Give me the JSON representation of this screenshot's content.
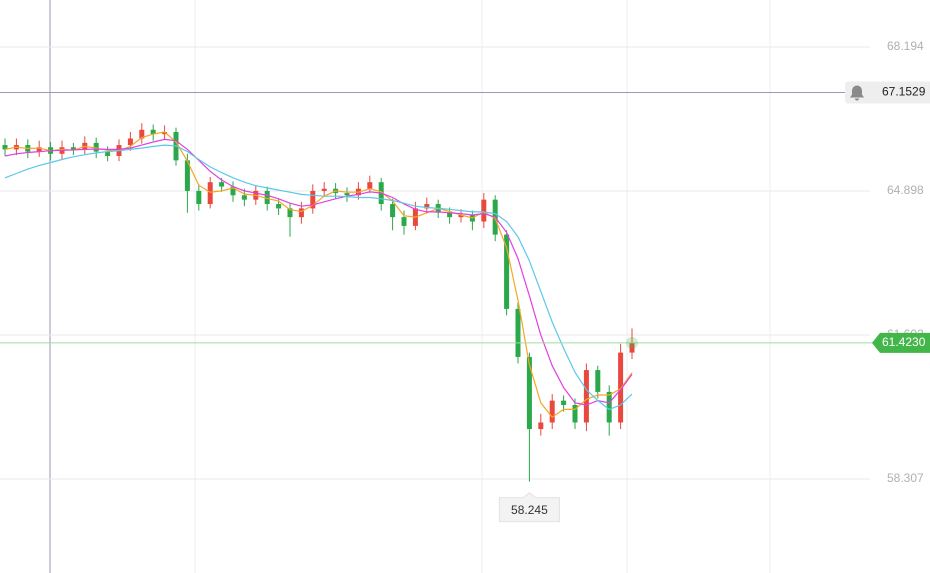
{
  "chart_data": {
    "type": "candlestick",
    "ylim": [
      56.155,
      69.27
    ],
    "yticks": [
      68.194,
      64.898,
      61.602,
      58.307
    ],
    "grid": true,
    "up_color": "#e8483d",
    "down_color": "#2aa84a",
    "open": [
      65.95,
      65.85,
      65.95,
      65.8,
      65.9,
      65.75,
      65.9,
      65.85,
      66.0,
      65.8,
      65.7,
      65.95,
      66.1,
      66.3,
      66.2,
      66.25,
      65.6,
      64.9,
      64.6,
      65.1,
      65.0,
      64.8,
      64.7,
      64.9,
      64.6,
      64.5,
      64.3,
      64.5,
      64.9,
      64.95,
      64.85,
      64.8,
      64.95,
      65.1,
      64.6,
      64.3,
      64.1,
      64.5,
      64.6,
      64.4,
      64.3,
      64.35,
      64.2,
      64.7,
      63.9,
      62.2,
      61.1,
      59.45,
      59.6,
      60.1,
      60.0,
      59.6,
      60.8,
      60.3,
      59.6,
      61.2
    ],
    "high": [
      66.1,
      66.1,
      66.08,
      66.05,
      66.02,
      66.05,
      66.0,
      66.15,
      66.12,
      65.92,
      66.08,
      66.25,
      66.45,
      66.42,
      66.4,
      66.35,
      65.75,
      65.05,
      65.22,
      65.2,
      65.12,
      64.95,
      65.02,
      65.0,
      64.72,
      64.62,
      64.65,
      65.05,
      65.1,
      65.08,
      64.98,
      65.1,
      65.25,
      65.2,
      64.72,
      64.45,
      64.65,
      64.75,
      64.7,
      64.52,
      64.48,
      64.45,
      64.85,
      64.8,
      64.0,
      62.35,
      61.2,
      59.8,
      60.25,
      60.22,
      60.15,
      60.95,
      60.9,
      60.45,
      61.4,
      61.75
    ],
    "low": [
      65.7,
      65.72,
      65.65,
      65.68,
      65.6,
      65.62,
      65.72,
      65.74,
      65.65,
      65.58,
      65.58,
      65.82,
      65.98,
      66.05,
      66.08,
      65.48,
      64.4,
      64.45,
      64.5,
      64.88,
      64.65,
      64.55,
      64.58,
      64.45,
      64.35,
      63.85,
      64.15,
      64.38,
      64.78,
      64.72,
      64.65,
      64.7,
      64.85,
      64.45,
      64.0,
      63.9,
      64.0,
      64.38,
      64.28,
      64.15,
      64.18,
      64.0,
      64.05,
      63.75,
      62.05,
      60.95,
      58.245,
      59.3,
      59.45,
      59.85,
      59.45,
      59.4,
      60.15,
      59.3,
      59.45,
      61.05
    ],
    "close": [
      65.85,
      65.95,
      65.8,
      65.9,
      65.75,
      65.9,
      65.85,
      66.0,
      65.8,
      65.7,
      65.95,
      66.1,
      66.3,
      66.2,
      66.25,
      65.6,
      64.9,
      64.6,
      65.1,
      65.0,
      64.8,
      64.7,
      64.9,
      64.6,
      64.5,
      64.3,
      64.5,
      64.9,
      64.95,
      64.85,
      64.8,
      64.95,
      65.1,
      64.6,
      64.3,
      64.1,
      64.5,
      64.6,
      64.4,
      64.3,
      64.35,
      64.2,
      64.7,
      63.9,
      62.2,
      61.1,
      59.45,
      59.6,
      60.1,
      60.0,
      59.6,
      60.8,
      60.3,
      59.6,
      61.2,
      61.42
    ],
    "series": [
      {
        "color": "#f5a623",
        "values": [
          65.85,
          65.9,
          65.87,
          65.88,
          65.82,
          65.85,
          65.83,
          65.92,
          65.88,
          65.83,
          65.82,
          65.92,
          66.12,
          66.2,
          66.25,
          66.02,
          65.58,
          65.03,
          64.87,
          64.9,
          64.97,
          64.83,
          64.8,
          64.73,
          64.67,
          64.47,
          64.43,
          64.57,
          64.78,
          64.9,
          64.87,
          64.87,
          64.95,
          64.88,
          64.67,
          64.33,
          64.3,
          64.4,
          64.5,
          64.43,
          64.35,
          64.28,
          64.42,
          64.27,
          63.6,
          62.4,
          60.92,
          60.05,
          59.72,
          59.9,
          59.9,
          60.13,
          60.23,
          60.23,
          60.37,
          60.74
        ]
      },
      {
        "color": "#e040e0",
        "values": [
          65.7,
          65.75,
          65.78,
          65.8,
          65.82,
          65.83,
          65.84,
          65.85,
          65.86,
          65.85,
          65.85,
          65.88,
          65.95,
          66.02,
          66.08,
          66.05,
          65.85,
          65.6,
          65.35,
          65.15,
          65.0,
          64.9,
          64.85,
          64.8,
          64.72,
          64.62,
          64.55,
          64.58,
          64.65,
          64.72,
          64.78,
          64.82,
          64.88,
          64.85,
          64.75,
          64.6,
          64.48,
          64.42,
          64.42,
          64.4,
          64.38,
          64.35,
          64.38,
          64.3,
          63.95,
          63.35,
          62.5,
          61.6,
          60.9,
          60.4,
          60.05,
          60.0,
          60.1,
          60.05,
          60.35,
          60.7
        ]
      },
      {
        "color": "#5bc8e8",
        "values": [
          65.2,
          65.3,
          65.4,
          65.48,
          65.55,
          65.62,
          65.68,
          65.73,
          65.77,
          65.8,
          65.82,
          65.85,
          65.88,
          65.92,
          65.95,
          65.93,
          65.8,
          65.62,
          65.45,
          65.32,
          65.2,
          65.1,
          65.02,
          64.97,
          64.92,
          64.87,
          64.82,
          64.8,
          64.78,
          64.78,
          64.77,
          64.75,
          64.75,
          64.72,
          64.68,
          64.62,
          64.55,
          64.52,
          64.5,
          64.48,
          64.45,
          64.42,
          64.42,
          64.38,
          64.2,
          63.85,
          63.3,
          62.6,
          61.9,
          61.3,
          60.75,
          60.35,
          60.1,
          59.9,
          60.0,
          60.25
        ]
      }
    ],
    "crosshair_price": 67.1529,
    "last_price": {
      "value": 61.423,
      "label": "61.4230"
    },
    "last_price_color": "#43b649"
  }
}
